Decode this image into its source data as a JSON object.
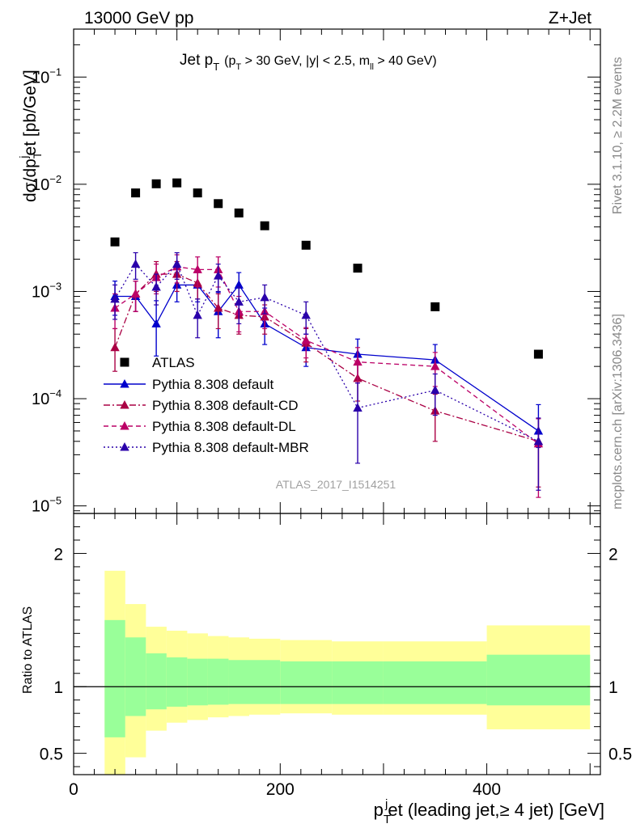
{
  "header": {
    "left": "13000 GeV pp",
    "right": "Z+Jet"
  },
  "side": {
    "rivet": "Rivet 3.1.10, ≥ 2.2M events",
    "mcplots": "mcplots.cern.ch [arXiv:1306.3436]"
  },
  "chart_data": {
    "type": "scatter",
    "title": "Jet p_T (p_T > 30 GeV, |y| < 2.5, m_ll > 40 GeV)",
    "title_main": "Jet p",
    "title_sub": "T",
    "title_paren": "(p",
    "title_paren_sub": "T",
    "title_cut1": " > 30 GeV, |y| < 2.5, m",
    "title_cut_sub": "ll",
    "title_cut2": " > 40 GeV)",
    "watermark": "ATLAS_2017_I1514251",
    "xlabel": "p_T^j et (leading jet,≥ 4 jet) [GeV]",
    "xlabel_p": "p",
    "xlabel_sub": "T",
    "xlabel_sup": "j",
    "xlabel_rest": "et (leading jet,≥ 4 jet) [GeV]",
    "ylabel": "dσ/dp_T^j et [pb/GeV]",
    "ylabel_a": "dσ/dp",
    "ylabel_sub": "T",
    "ylabel_sup": "j",
    "ylabel_b": "et [pb/GeV]",
    "ratio_ylabel": "Ratio to ATLAS",
    "xlim": [
      0,
      510
    ],
    "ylim": [
      8.5e-06,
      0.28
    ],
    "yscale": "log",
    "ratio_ylim": [
      0.34,
      2.3
    ],
    "x_ticks": [
      0,
      200,
      400
    ],
    "x_tick_labels": [
      "0",
      "200",
      "400"
    ],
    "y_tick_labels": [
      {
        "value": 0.1,
        "base": "10",
        "exp": "−1"
      },
      {
        "value": 0.01,
        "base": "10",
        "exp": "−2"
      },
      {
        "value": 0.001,
        "base": "10",
        "exp": "−3"
      },
      {
        "value": 0.0001,
        "base": "10",
        "exp": "−4"
      },
      {
        "value": 1e-05,
        "base": "10",
        "exp": "−5"
      }
    ],
    "ratio_ticks": [
      0.5,
      1,
      2
    ],
    "ratio_tick_labels": [
      "0.5",
      "1",
      "2"
    ],
    "legend_placement": "center-left",
    "bin_edges": [
      30,
      50,
      70,
      90,
      110,
      130,
      150,
      170,
      200,
      250,
      300,
      400,
      500
    ],
    "bin_centers": [
      40,
      60,
      80,
      100,
      120,
      140,
      160,
      185,
      225,
      275,
      350,
      450
    ],
    "atlas": {
      "name": "ATLAS",
      "values": [
        0.0029,
        0.0083,
        0.0101,
        0.0103,
        0.0083,
        0.0066,
        0.0054,
        0.0041,
        0.0027,
        0.00165,
        0.00072,
        0.00026
      ]
    },
    "ratio_bands": {
      "yellow_color": "#ffff99",
      "green_color": "#99ff99",
      "green_lo": [
        0.62,
        0.78,
        0.83,
        0.85,
        0.86,
        0.865,
        0.87,
        0.87,
        0.87,
        0.87,
        0.87,
        0.86
      ],
      "green_hi": [
        1.5,
        1.37,
        1.25,
        1.22,
        1.21,
        1.21,
        1.2,
        1.2,
        1.19,
        1.19,
        1.19,
        1.24
      ],
      "yellow_lo": [
        0.34,
        0.47,
        0.67,
        0.73,
        0.75,
        0.77,
        0.78,
        0.79,
        0.8,
        0.79,
        0.79,
        0.68
      ],
      "yellow_hi": [
        1.87,
        1.62,
        1.45,
        1.42,
        1.4,
        1.38,
        1.37,
        1.36,
        1.35,
        1.34,
        1.34,
        1.46
      ]
    },
    "series": [
      {
        "name": "Pythia 8.308 default",
        "color": "#0000cc",
        "dash": "",
        "values": [
          0.0009,
          0.0009,
          0.0005,
          0.00115,
          0.00115,
          0.00065,
          0.00115,
          0.0005,
          0.0003,
          0.00026,
          0.00023,
          5e-05
        ],
        "err_lo": [
          0.0006,
          0.00065,
          0.00025,
          0.0008,
          0.0008,
          0.00037,
          0.0008,
          0.00032,
          0.0002,
          0.00015,
          0.00012,
          3.5e-05
        ],
        "err_hi": [
          0.00125,
          0.00125,
          0.00082,
          0.0015,
          0.0015,
          0.00098,
          0.0015,
          0.0007,
          0.0004,
          0.00036,
          0.00032,
          8.8e-05
        ]
      },
      {
        "name": "Pythia 8.308 default-CD",
        "color": "#aa0044",
        "dash": "8,3,2,3",
        "values": [
          0.0003,
          0.00095,
          0.00145,
          0.00145,
          0.0012,
          0.0007,
          0.0006,
          0.00058,
          0.00033,
          0.000155,
          7.7e-05,
          4e-05
        ],
        "err_lo": [
          0.00018,
          0.00065,
          0.001,
          0.001,
          0.00085,
          0.00045,
          0.0004,
          0.0004,
          0.00022,
          9.5e-05,
          4e-05,
          1.5e-05
        ],
        "err_hi": [
          0.00045,
          0.00125,
          0.0019,
          0.0019,
          0.0016,
          0.00095,
          0.0008,
          0.00075,
          0.00045,
          0.00022,
          0.00011,
          6.5e-05
        ]
      },
      {
        "name": "Pythia 8.308 default-DL",
        "color": "#bb0066",
        "dash": "6,4",
        "values": [
          0.0007,
          0.00095,
          0.00135,
          0.0017,
          0.0016,
          0.0016,
          0.00065,
          0.00065,
          0.00035,
          0.00022,
          0.0002,
          3.8e-05
        ],
        "err_lo": [
          0.00045,
          0.00065,
          0.00095,
          0.0012,
          0.0011,
          0.0011,
          0.00042,
          0.00045,
          0.00024,
          0.00014,
          0.00013,
          1.2e-05
        ],
        "err_hi": [
          0.00095,
          0.00125,
          0.0018,
          0.0022,
          0.0021,
          0.0021,
          0.0009,
          0.00085,
          0.00046,
          0.0003,
          0.00027,
          6.5e-05
        ]
      },
      {
        "name": "Pythia 8.308 default-MBR",
        "color": "#2a00aa",
        "dash": "2,3",
        "values": [
          0.00085,
          0.0018,
          0.0011,
          0.0018,
          0.0006,
          0.0014,
          0.0008,
          0.00088,
          0.0006,
          8.2e-05,
          0.00012,
          4e-05
        ],
        "err_lo": [
          0.00055,
          0.0013,
          0.00075,
          0.0013,
          0.00037,
          0.001,
          0.0005,
          0.00062,
          0.0004,
          2.5e-05,
          7e-05,
          1.4e-05
        ],
        "err_hi": [
          0.00115,
          0.0023,
          0.00145,
          0.0023,
          0.00085,
          0.0018,
          0.0011,
          0.00115,
          0.0008,
          0.00014,
          0.00017,
          6.6e-05
        ]
      }
    ]
  }
}
